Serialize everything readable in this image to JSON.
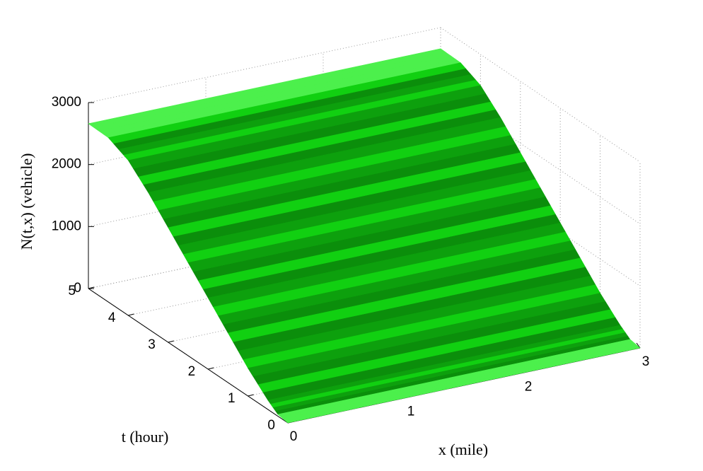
{
  "chart_data": {
    "type": "surface",
    "xlabel": "x (mile)",
    "ylabel": "t (hour)",
    "zlabel": "N(t,x) (vehicle)",
    "xlim": [
      0,
      3
    ],
    "xticks": [
      0,
      1,
      2,
      3
    ],
    "ylim": [
      0,
      5
    ],
    "yticks": [
      0,
      1,
      2,
      3,
      4,
      5
    ],
    "zlim": [
      0,
      3000
    ],
    "zticks": [
      0,
      1000,
      2000,
      3000
    ],
    "y": [
      0,
      0.25,
      0.5,
      1,
      1.5,
      2,
      2.5,
      3,
      3.5,
      4,
      4.5,
      5
    ],
    "values": [
      0,
      30,
      150,
      450,
      800,
      1150,
      1500,
      1850,
      2200,
      2500,
      2650,
      2660
    ],
    "color": "#33ee33",
    "grid": true
  }
}
